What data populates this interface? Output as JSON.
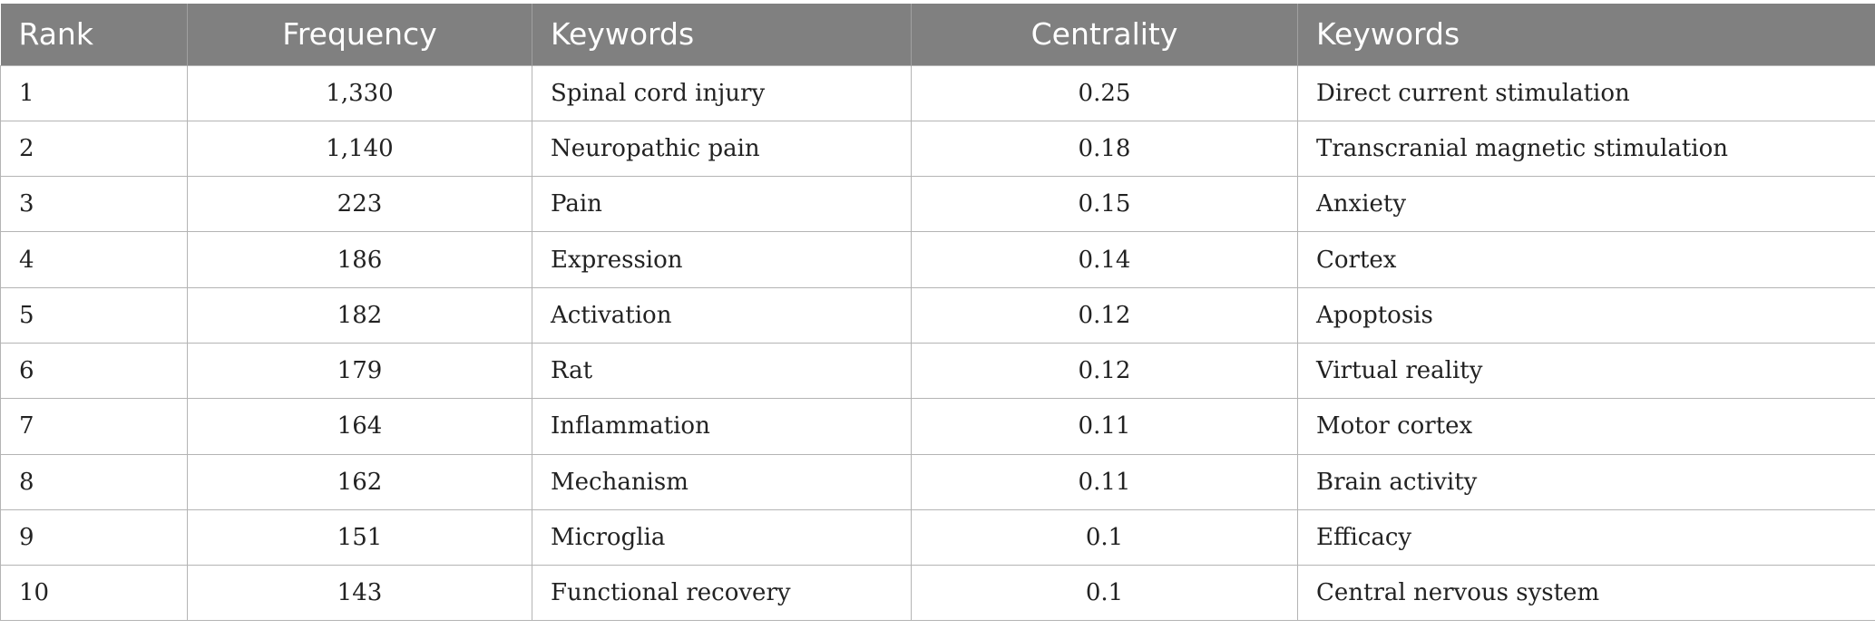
{
  "table": {
    "headers": [
      "Rank",
      "Frequency",
      "Keywords",
      "Centrality",
      "Keywords"
    ],
    "rows": [
      {
        "rank": "1",
        "frequency": "1,330",
        "keyword_freq": "Spinal cord injury",
        "centrality": "0.25",
        "keyword_cent": "Direct current stimulation"
      },
      {
        "rank": "2",
        "frequency": "1,140",
        "keyword_freq": "Neuropathic pain",
        "centrality": "0.18",
        "keyword_cent": "Transcranial magnetic stimulation"
      },
      {
        "rank": "3",
        "frequency": "223",
        "keyword_freq": "Pain",
        "centrality": "0.15",
        "keyword_cent": "Anxiety"
      },
      {
        "rank": "4",
        "frequency": "186",
        "keyword_freq": "Expression",
        "centrality": "0.14",
        "keyword_cent": "Cortex"
      },
      {
        "rank": "5",
        "frequency": "182",
        "keyword_freq": "Activation",
        "centrality": "0.12",
        "keyword_cent": "Apoptosis"
      },
      {
        "rank": "6",
        "frequency": "179",
        "keyword_freq": "Rat",
        "centrality": "0.12",
        "keyword_cent": "Virtual reality"
      },
      {
        "rank": "7",
        "frequency": "164",
        "keyword_freq": "Inflammation",
        "centrality": "0.11",
        "keyword_cent": "Motor cortex"
      },
      {
        "rank": "8",
        "frequency": "162",
        "keyword_freq": "Mechanism",
        "centrality": "0.11",
        "keyword_cent": "Brain activity"
      },
      {
        "rank": "9",
        "frequency": "151",
        "keyword_freq": "Microglia",
        "centrality": "0.1",
        "keyword_cent": "Efficacy"
      },
      {
        "rank": "10",
        "frequency": "143",
        "keyword_freq": "Functional recovery",
        "centrality": "0.1",
        "keyword_cent": "Central nervous system"
      }
    ]
  }
}
